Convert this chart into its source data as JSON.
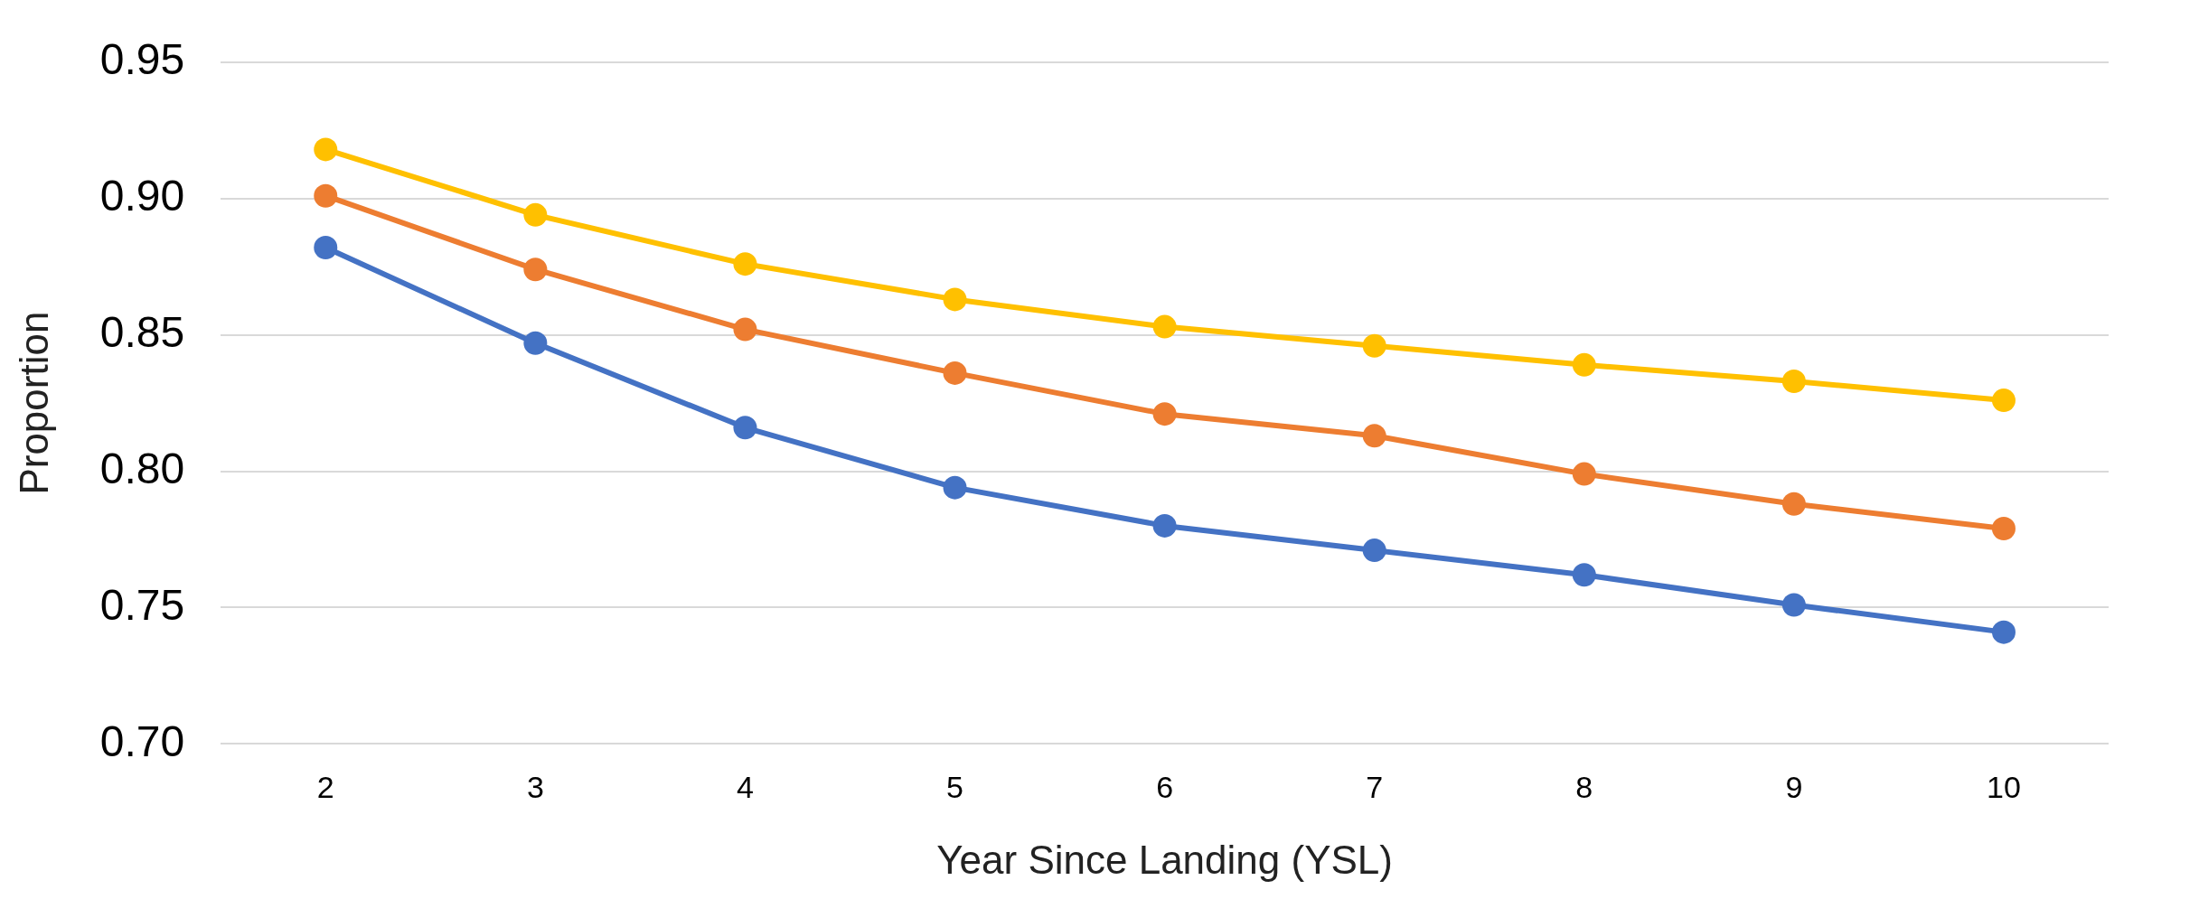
{
  "chart_data": {
    "type": "line",
    "xlabel": "Year Since Landing (YSL)",
    "ylabel": "Proportion",
    "categories": [
      "2",
      "3",
      "4",
      "5",
      "6",
      "7",
      "8",
      "9",
      "10"
    ],
    "series": [
      {
        "color": "#4472c4",
        "values": [
          0.882,
          0.847,
          0.816,
          0.794,
          0.78,
          0.771,
          0.762,
          0.751,
          0.741
        ]
      },
      {
        "color": "#ed7d31",
        "values": [
          0.901,
          0.874,
          0.852,
          0.836,
          0.821,
          0.813,
          0.799,
          0.788,
          0.779
        ]
      },
      {
        "color": "#ffc000",
        "values": [
          0.918,
          0.894,
          0.876,
          0.863,
          0.853,
          0.846,
          0.839,
          0.833,
          0.826
        ]
      }
    ],
    "ylim": [
      0.7,
      0.95
    ],
    "yticks": [
      {
        "value": 0.7,
        "label": "0.70"
      },
      {
        "value": 0.75,
        "label": "0.75"
      },
      {
        "value": 0.8,
        "label": "0.80"
      },
      {
        "value": 0.85,
        "label": "0.85"
      },
      {
        "value": 0.9,
        "label": "0.90"
      },
      {
        "value": 0.95,
        "label": "0.95"
      }
    ],
    "grid": "y",
    "legend": false,
    "marker": "circle",
    "line_style": "solid"
  }
}
